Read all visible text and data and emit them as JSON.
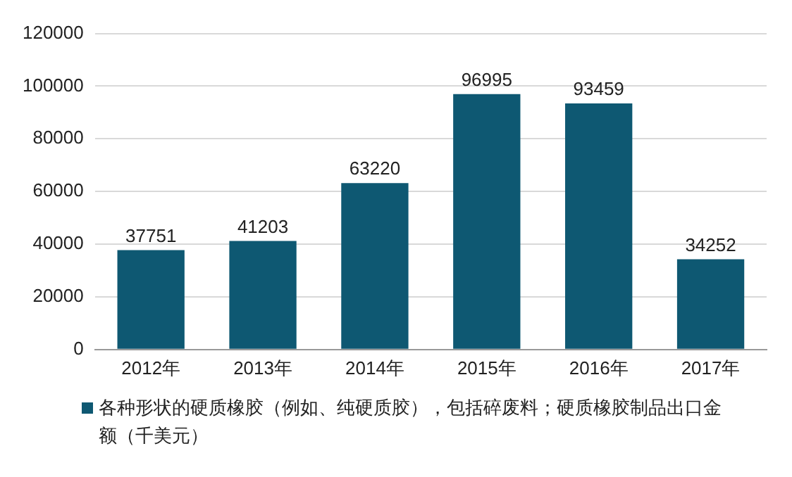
{
  "chart_data": {
    "type": "bar",
    "categories": [
      "2012年",
      "2013年",
      "2014年",
      "2015年",
      "2016年",
      "2017年"
    ],
    "series": [
      {
        "name": "各种形状的硬质橡胶（例如、纯硬质胶），包括碎废料；硬质橡胶制品出口金额（千美元）",
        "color": "#0e5872",
        "values": [
          37751,
          41203,
          63220,
          96995,
          93459,
          34252
        ]
      }
    ],
    "ylim": [
      0,
      120000
    ],
    "yticks": [
      0,
      20000,
      40000,
      60000,
      80000,
      100000,
      120000
    ],
    "grid": "y",
    "legend": "bottom",
    "data_labels": true
  }
}
